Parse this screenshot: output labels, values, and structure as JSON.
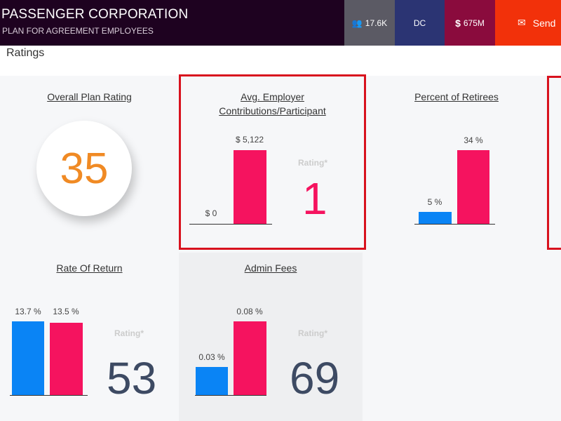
{
  "header": {
    "title": "PASSENGER CORPORATION",
    "subtitle": "PLAN FOR AGREEMENT EMPLOYEES",
    "badges": [
      {
        "icon": "users-icon",
        "label": "17.6K",
        "color": "#5b5a64"
      },
      {
        "label": "DC",
        "color": "#2b3473"
      },
      {
        "icon": "dollar-icon",
        "label": "675M",
        "color": "#8a0b3d"
      },
      {
        "icon": "envelope-icon",
        "label": "Send",
        "color": "#f2310a"
      }
    ]
  },
  "section_title": "Ratings",
  "colors": {
    "blue": "#0a84f5",
    "pink": "#f5135f",
    "orange": "#f08a24"
  },
  "cards": {
    "overall": {
      "title": "Overall Plan Rating",
      "value": "35"
    },
    "employer": {
      "title_line1": "Avg. Employer",
      "title_line2": "Contributions/Participant",
      "bar_labels": [
        "$ 0",
        "$ 5,122"
      ],
      "values": [
        0,
        5122
      ],
      "rating_label": "Rating*",
      "rating": "1"
    },
    "retirees": {
      "title": "Percent of Retirees",
      "bar_labels": [
        "5 %",
        "34 %"
      ],
      "values": [
        5,
        34
      ]
    },
    "return": {
      "title": "Rate Of Return",
      "bar_labels": [
        "13.7 %",
        "13.5 %"
      ],
      "values": [
        13.7,
        13.5
      ],
      "rating_label": "Rating*",
      "rating": "53"
    },
    "fees": {
      "title": "Admin Fees",
      "bar_labels": [
        "0.03 %",
        "0.08 %"
      ],
      "values": [
        0.03,
        0.08
      ],
      "rating_label": "Rating*",
      "rating": "69"
    }
  }
}
